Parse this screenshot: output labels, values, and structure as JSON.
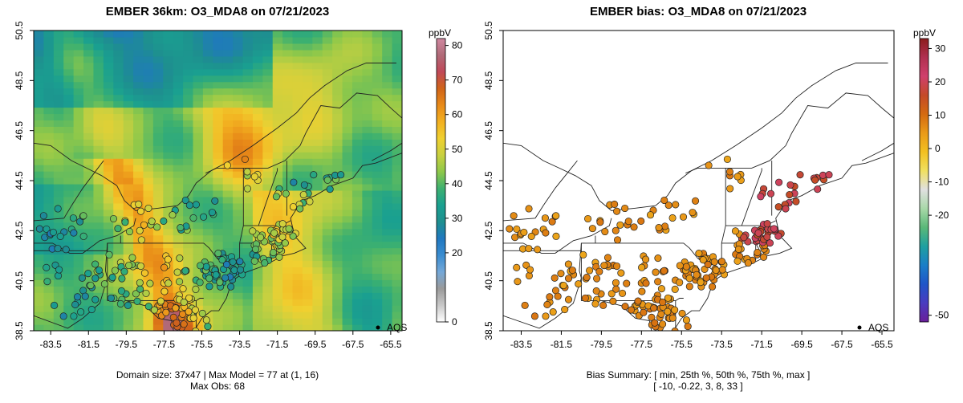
{
  "chart_data": [
    {
      "type": "heatmap",
      "title": "EMBER 36km: O3_MDA8 on 07/21/2023",
      "x_ticks": [
        "-83.5",
        "-81.5",
        "-79.5",
        "-77.5",
        "-75.5",
        "-73.5",
        "-71.5",
        "-69.5",
        "-67.5",
        "-65.5"
      ],
      "y_ticks": [
        "38.5",
        "40.5",
        "42.5",
        "44.5",
        "46.5",
        "48.5",
        "50.5"
      ],
      "xlim": [
        -84.4,
        -64.9
      ],
      "ylim": [
        38.5,
        50.5
      ],
      "colorbar": {
        "unit": "ppbV",
        "ticks": [
          "0",
          "20",
          "30",
          "40",
          "50",
          "60",
          "70",
          "80"
        ],
        "range": [
          0,
          82
        ],
        "colors": [
          "#ffffff",
          "#c8c8c8",
          "#9a9a9a",
          "#74a8d8",
          "#3a8cd0",
          "#1f78c0",
          "#1e8f8f",
          "#1aa090",
          "#3cb070",
          "#8ec84a",
          "#c8d040",
          "#f0d030",
          "#f2b020",
          "#e88a18",
          "#d06418",
          "#c04858",
          "#b06a78",
          "#d088a0"
        ]
      },
      "legend_label": "AQS",
      "footnote_1": "Domain size: 37x47 | Max Model = 77 at (1, 16)",
      "footnote_2": "Max Obs: 68"
    },
    {
      "type": "scatter",
      "title": "EMBER bias: O3_MDA8 on 07/21/2023",
      "x_ticks": [
        "-83.5",
        "-81.5",
        "-79.5",
        "-77.5",
        "-75.5",
        "-73.5",
        "-71.5",
        "-69.5",
        "-67.5",
        "-65.5"
      ],
      "y_ticks": [
        "38.5",
        "40.5",
        "42.5",
        "44.5",
        "46.5",
        "48.5",
        "50.5"
      ],
      "xlim": [
        -84.4,
        -64.9
      ],
      "ylim": [
        38.5,
        50.5
      ],
      "colorbar": {
        "unit": "ppbV",
        "ticks": [
          "-50",
          "-20",
          "-10",
          "0",
          "10",
          "20",
          "30"
        ],
        "range": [
          -52,
          33
        ],
        "colors": [
          "#6a1f9a",
          "#4a3cc0",
          "#1f55c8",
          "#1a7ec8",
          "#1fa0a0",
          "#5ab878",
          "#a8d8a8",
          "#e0e0e0",
          "#f0e060",
          "#f2c020",
          "#ea9a18",
          "#d46a10",
          "#c44a28",
          "#d0406c",
          "#b03050",
          "#8c1d1d"
        ]
      },
      "legend_label": "AQS",
      "summary_1": "Bias Summary: [ min, 25th %, 50th %, 75th %, max ]",
      "summary_2": "[ -10,  -0.22,  3,  8,  33 ]"
    }
  ]
}
